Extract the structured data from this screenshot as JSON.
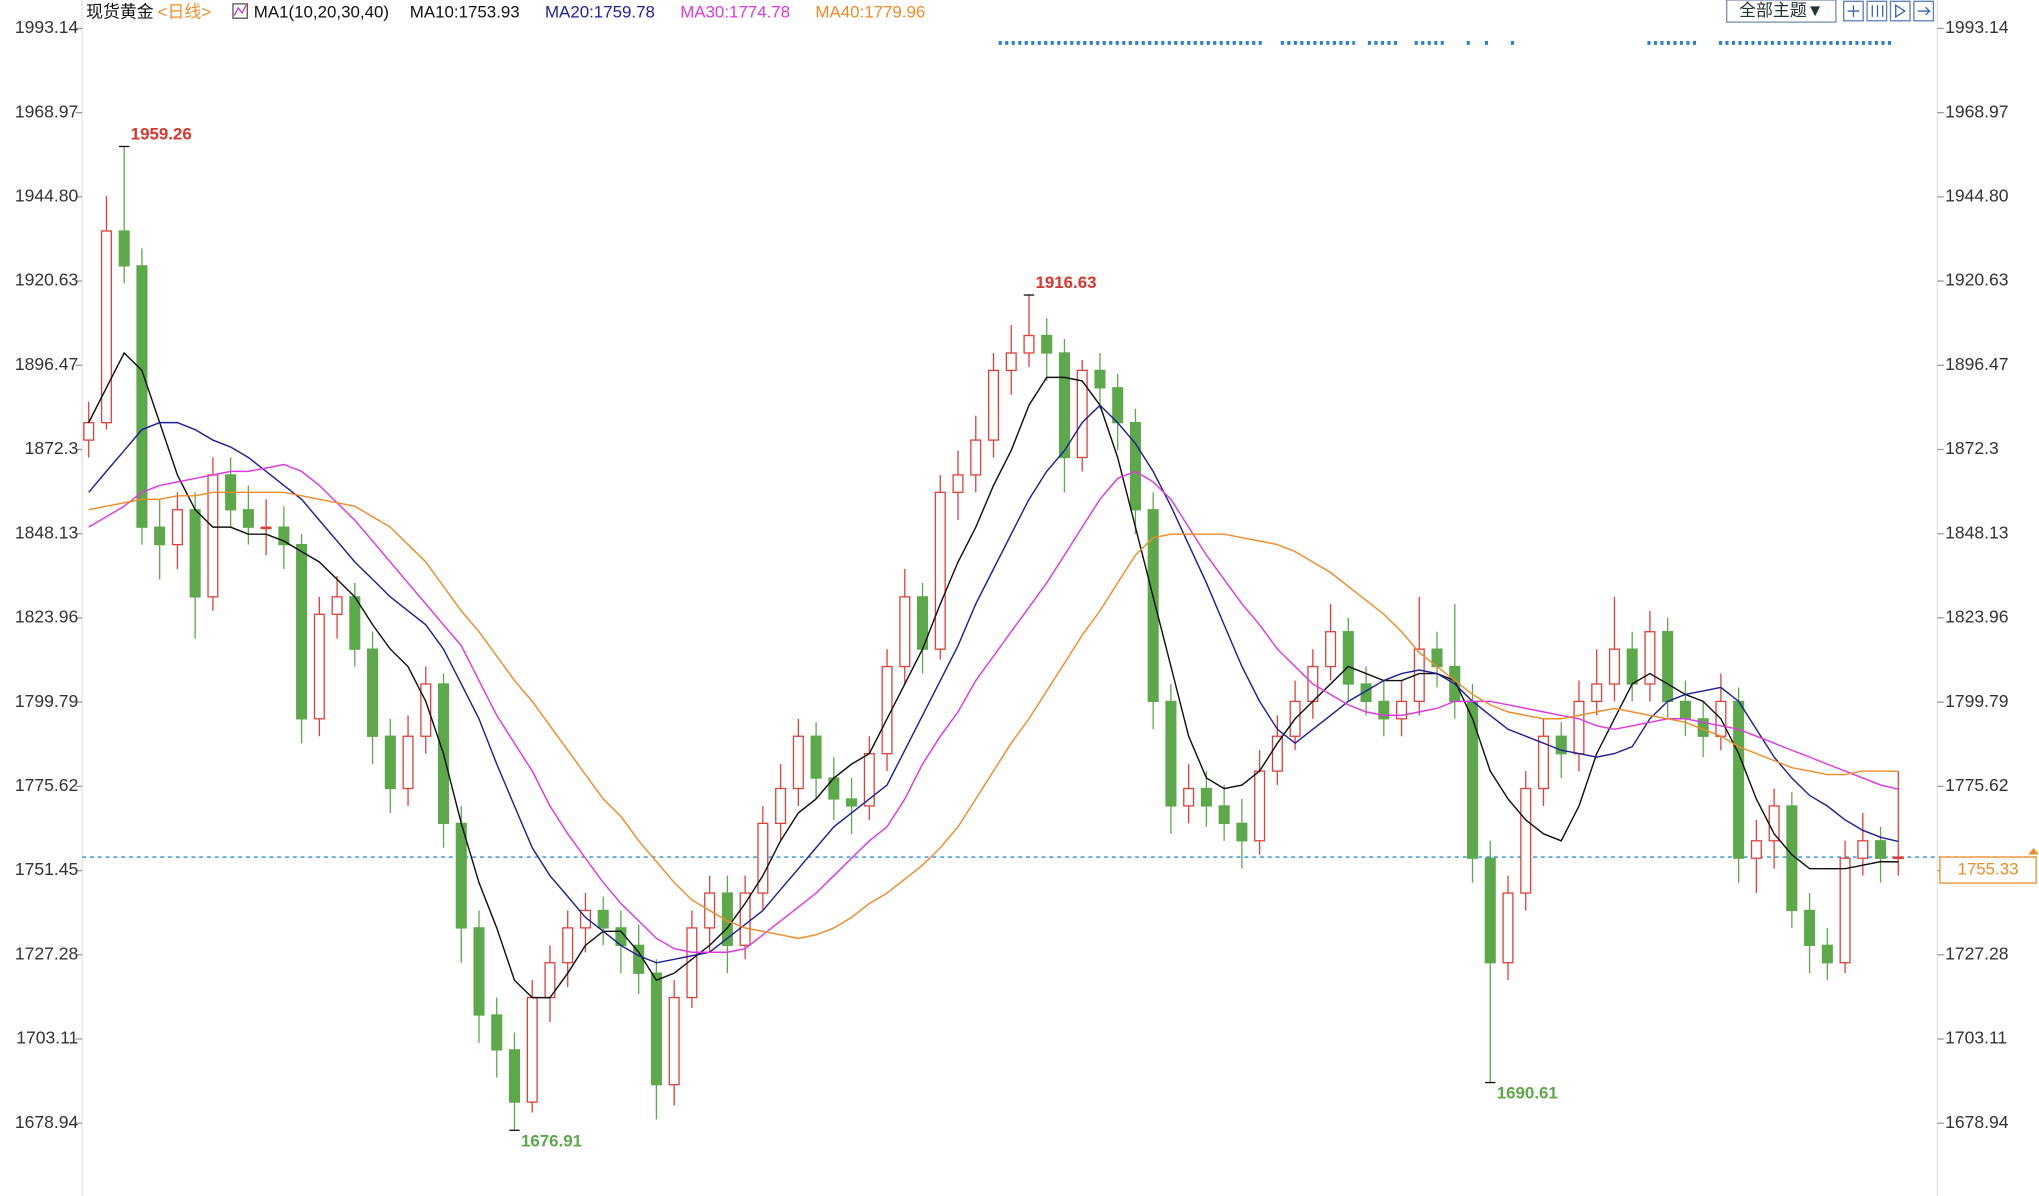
{
  "chart_data": {
    "type": "candlestick",
    "title": "现货黄金",
    "subtitle": "<日线>",
    "indicator": "MA1(10,20,30,40)",
    "theme_button": "全部主题▼",
    "ylim": [
      1658.8,
      2001.3
    ],
    "yticks": [
      1678.94,
      1703.11,
      1727.28,
      1751.45,
      1775.62,
      1799.79,
      1823.96,
      1848.13,
      1872.3,
      1896.47,
      1920.63,
      {
        "value": 1944.8,
        "label": "1944.80"
      },
      1968.97,
      1993.14
    ],
    "up_color": "#e0403c",
    "down_color": "#5ea84c",
    "candles": [
      [
        1875,
        1886,
        1870,
        1880
      ],
      [
        1880,
        1945,
        1878,
        1935
      ],
      [
        1935,
        1959.26,
        1920,
        1925
      ],
      [
        1925,
        1930,
        1845,
        1850
      ],
      [
        1850,
        1858,
        1835,
        1845
      ],
      [
        1845,
        1860,
        1838,
        1855
      ],
      [
        1855,
        1860,
        1818,
        1830
      ],
      [
        1830,
        1870,
        1826,
        1865
      ],
      [
        1865,
        1870,
        1850,
        1855
      ],
      [
        1855,
        1862,
        1845,
        1850
      ],
      [
        1850,
        1858,
        1842,
        1850
      ],
      [
        1850,
        1856,
        1838,
        1845
      ],
      [
        1845,
        1848,
        1788,
        1795
      ],
      [
        1795,
        1830,
        1790,
        1825
      ],
      [
        1825,
        1836,
        1818,
        1830
      ],
      [
        1830,
        1834,
        1810,
        1815
      ],
      [
        1815,
        1820,
        1782,
        1790
      ],
      [
        1790,
        1795,
        1768,
        1775
      ],
      [
        1775,
        1796,
        1770,
        1790
      ],
      [
        1790,
        1810,
        1785,
        1805
      ],
      [
        1805,
        1808,
        1758,
        1765
      ],
      [
        1765,
        1770,
        1725,
        1735
      ],
      [
        1735,
        1740,
        1702,
        1710
      ],
      [
        1710,
        1715,
        1692,
        1700
      ],
      [
        1700,
        1705,
        1676.91,
        1685
      ],
      [
        1685,
        1720,
        1682,
        1715
      ],
      [
        1715,
        1730,
        1708,
        1725
      ],
      [
        1725,
        1740,
        1718,
        1735
      ],
      [
        1735,
        1745,
        1728,
        1740
      ],
      [
        1740,
        1744,
        1730,
        1735
      ],
      [
        1735,
        1740,
        1722,
        1730
      ],
      [
        1730,
        1736,
        1716,
        1722
      ],
      [
        1722,
        1726,
        1680,
        1690
      ],
      [
        1690,
        1720,
        1684,
        1715
      ],
      [
        1715,
        1740,
        1712,
        1735
      ],
      [
        1735,
        1750,
        1728,
        1745
      ],
      [
        1745,
        1750,
        1722,
        1730
      ],
      [
        1730,
        1750,
        1726,
        1745
      ],
      [
        1745,
        1770,
        1740,
        1765
      ],
      [
        1765,
        1782,
        1760,
        1775
      ],
      [
        1775,
        1795,
        1770,
        1790
      ],
      [
        1790,
        1794,
        1772,
        1778
      ],
      [
        1778,
        1784,
        1766,
        1772
      ],
      [
        1772,
        1778,
        1762,
        1770
      ],
      [
        1770,
        1790,
        1766,
        1785
      ],
      [
        1785,
        1815,
        1780,
        1810
      ],
      [
        1810,
        1838,
        1805,
        1830
      ],
      [
        1830,
        1834,
        1808,
        1815
      ],
      [
        1815,
        1865,
        1812,
        1860
      ],
      [
        1860,
        1872,
        1852,
        1865
      ],
      [
        1865,
        1882,
        1860,
        1875
      ],
      [
        1875,
        1900,
        1870,
        1895
      ],
      [
        1895,
        1908,
        1888,
        1900
      ],
      [
        1900,
        1916.63,
        1896,
        1905
      ],
      [
        1905,
        1910,
        1892,
        1900
      ],
      [
        1900,
        1904,
        1860,
        1870
      ],
      [
        1870,
        1898,
        1866,
        1895
      ],
      [
        1895,
        1900,
        1884,
        1890
      ],
      [
        1890,
        1894,
        1872,
        1880
      ],
      [
        1880,
        1884,
        1848,
        1855
      ],
      [
        1855,
        1860,
        1792,
        1800
      ],
      [
        1800,
        1805,
        1762,
        1770
      ],
      [
        1770,
        1782,
        1765,
        1775
      ],
      [
        1775,
        1780,
        1764,
        1770
      ],
      [
        1770,
        1776,
        1760,
        1765
      ],
      [
        1765,
        1772,
        1752,
        1760
      ],
      [
        1760,
        1786,
        1756,
        1780
      ],
      [
        1780,
        1796,
        1776,
        1790
      ],
      [
        1790,
        1806,
        1786,
        1800
      ],
      [
        1800,
        1815,
        1795,
        1810
      ],
      [
        1810,
        1828,
        1806,
        1820
      ],
      [
        1820,
        1824,
        1800,
        1805
      ],
      [
        1805,
        1810,
        1796,
        1800
      ],
      [
        1800,
        1806,
        1790,
        1795
      ],
      [
        1795,
        1806,
        1790,
        1800
      ],
      [
        1800,
        1830,
        1796,
        1815
      ],
      [
        1815,
        1820,
        1804,
        1810
      ],
      [
        1810,
        1828,
        1795,
        1800
      ],
      [
        1800,
        1805,
        1748,
        1755
      ],
      [
        1755,
        1760,
        1690.61,
        1725
      ],
      [
        1725,
        1750,
        1720,
        1745
      ],
      [
        1745,
        1780,
        1740,
        1775
      ],
      [
        1775,
        1795,
        1770,
        1790
      ],
      [
        1790,
        1794,
        1778,
        1785
      ],
      [
        1785,
        1806,
        1780,
        1800
      ],
      [
        1800,
        1815,
        1796,
        1805
      ],
      [
        1805,
        1830,
        1800,
        1815
      ],
      [
        1815,
        1820,
        1800,
        1805
      ],
      [
        1805,
        1826,
        1800,
        1820
      ],
      [
        1820,
        1824,
        1795,
        1800
      ],
      [
        1800,
        1806,
        1790,
        1795
      ],
      [
        1795,
        1800,
        1784,
        1790
      ],
      [
        1790,
        1808,
        1786,
        1800
      ],
      [
        1800,
        1804,
        1748,
        1755
      ],
      [
        1755,
        1766,
        1745,
        1760
      ],
      [
        1760,
        1775,
        1752,
        1770
      ],
      [
        1770,
        1774,
        1735,
        1740
      ],
      [
        1740,
        1745,
        1722,
        1730
      ],
      [
        1730,
        1735,
        1720,
        1725
      ],
      [
        1725,
        1760,
        1722,
        1755
      ],
      [
        1755,
        1768,
        1750,
        1760
      ],
      [
        1760,
        1764,
        1748,
        1755
      ],
      [
        1755,
        1780,
        1750,
        1755.33
      ]
    ],
    "series": [
      {
        "name": "MA10:1753.93",
        "color": "#111111",
        "values": [
          1880,
          1890,
          1900,
          1895,
          1880,
          1865,
          1855,
          1850,
          1850,
          1848,
          1848,
          1846,
          1843,
          1840,
          1835,
          1830,
          1822,
          1815,
          1810,
          1800,
          1785,
          1765,
          1748,
          1735,
          1720,
          1715,
          1715,
          1722,
          1730,
          1734,
          1734,
          1728,
          1720,
          1722,
          1726,
          1730,
          1735,
          1742,
          1750,
          1760,
          1768,
          1772,
          1778,
          1782,
          1785,
          1795,
          1805,
          1815,
          1828,
          1840,
          1850,
          1862,
          1872,
          1885,
          1893,
          1893,
          1892,
          1885,
          1870,
          1850,
          1830,
          1810,
          1790,
          1778,
          1775,
          1776,
          1780,
          1788,
          1795,
          1800,
          1805,
          1810,
          1808,
          1806,
          1806,
          1808,
          1808,
          1806,
          1795,
          1780,
          1772,
          1766,
          1762,
          1760,
          1770,
          1785,
          1795,
          1805,
          1808,
          1805,
          1802,
          1800,
          1795,
          1785,
          1772,
          1762,
          1756,
          1752,
          1752,
          1752,
          1753,
          1754,
          1753.93
        ]
      },
      {
        "name": "MA20:1759.78",
        "color": "#1f1f9a",
        "values": [
          1860,
          1866,
          1872,
          1878,
          1880,
          1880,
          1878,
          1875,
          1873,
          1870,
          1866,
          1862,
          1858,
          1852,
          1846,
          1840,
          1835,
          1830,
          1826,
          1822,
          1815,
          1805,
          1795,
          1782,
          1770,
          1758,
          1750,
          1744,
          1738,
          1734,
          1730,
          1727,
          1725,
          1726,
          1727,
          1728,
          1732,
          1736,
          1740,
          1746,
          1752,
          1758,
          1764,
          1768,
          1772,
          1776,
          1786,
          1796,
          1806,
          1816,
          1828,
          1838,
          1848,
          1858,
          1866,
          1872,
          1880,
          1885,
          1880,
          1874,
          1866,
          1856,
          1845,
          1834,
          1822,
          1810,
          1800,
          1792,
          1788,
          1792,
          1796,
          1800,
          1803,
          1806,
          1808,
          1809,
          1808,
          1805,
          1800,
          1796,
          1792,
          1790,
          1788,
          1786,
          1785,
          1784,
          1785,
          1787,
          1795,
          1800,
          1802,
          1803,
          1804,
          1800,
          1792,
          1784,
          1778,
          1773,
          1770,
          1766,
          1763,
          1761,
          1759.78
        ]
      },
      {
        "name": "MA30:1774.78",
        "color": "#e038e0",
        "values": [
          1850,
          1853,
          1856,
          1860,
          1862,
          1863,
          1864,
          1865,
          1866,
          1866,
          1867,
          1868,
          1866,
          1862,
          1857,
          1852,
          1846,
          1840,
          1834,
          1828,
          1822,
          1816,
          1806,
          1796,
          1788,
          1780,
          1770,
          1762,
          1755,
          1748,
          1742,
          1737,
          1732,
          1729,
          1728,
          1728,
          1728,
          1729,
          1733,
          1737,
          1741,
          1745,
          1750,
          1755,
          1760,
          1764,
          1772,
          1782,
          1790,
          1797,
          1806,
          1813,
          1820,
          1827,
          1834,
          1842,
          1850,
          1858,
          1864,
          1866,
          1863,
          1858,
          1850,
          1842,
          1835,
          1828,
          1822,
          1815,
          1810,
          1805,
          1802,
          1799,
          1797,
          1796,
          1796,
          1797,
          1798,
          1800,
          1800,
          1800,
          1799,
          1798,
          1797,
          1796,
          1795,
          1793,
          1792,
          1793,
          1794,
          1795,
          1795,
          1794,
          1793,
          1792,
          1790,
          1788,
          1786,
          1784,
          1782,
          1780,
          1778,
          1776,
          1774.78
        ]
      },
      {
        "name": "MA40:1779.96",
        "color": "#f08c28",
        "values": [
          1855,
          1856,
          1857,
          1858,
          1858,
          1859,
          1859,
          1860,
          1860,
          1860,
          1860,
          1860,
          1859,
          1858,
          1857,
          1856,
          1853,
          1850,
          1845,
          1840,
          1833,
          1826,
          1820,
          1813,
          1806,
          1800,
          1793,
          1786,
          1779,
          1772,
          1767,
          1760,
          1754,
          1748,
          1743,
          1740,
          1737,
          1735,
          1734,
          1733,
          1732,
          1733,
          1735,
          1738,
          1742,
          1745,
          1749,
          1753,
          1758,
          1764,
          1772,
          1780,
          1788,
          1795,
          1803,
          1811,
          1819,
          1826,
          1834,
          1842,
          1847,
          1848,
          1848,
          1848,
          1848,
          1847,
          1846,
          1845,
          1843,
          1840,
          1837,
          1833,
          1829,
          1825,
          1820,
          1814,
          1810,
          1806,
          1802,
          1799,
          1797,
          1796,
          1795,
          1795,
          1796,
          1797,
          1798,
          1797,
          1796,
          1795,
          1794,
          1792,
          1790,
          1787,
          1785,
          1783,
          1781,
          1780,
          1779,
          1779,
          1780,
          1780,
          1779.96
        ]
      }
    ],
    "annotations": [
      {
        "value": 1959.26,
        "candle": 2,
        "color": "#d9362f"
      },
      {
        "value": 1916.63,
        "candle": 53,
        "color": "#d9362f"
      },
      {
        "value": 1676.91,
        "candle": 24,
        "color": "#5ea84c"
      },
      {
        "value": 1690.61,
        "candle": 79,
        "color": "#5ea84c"
      }
    ],
    "last_price": 1755.33
  }
}
